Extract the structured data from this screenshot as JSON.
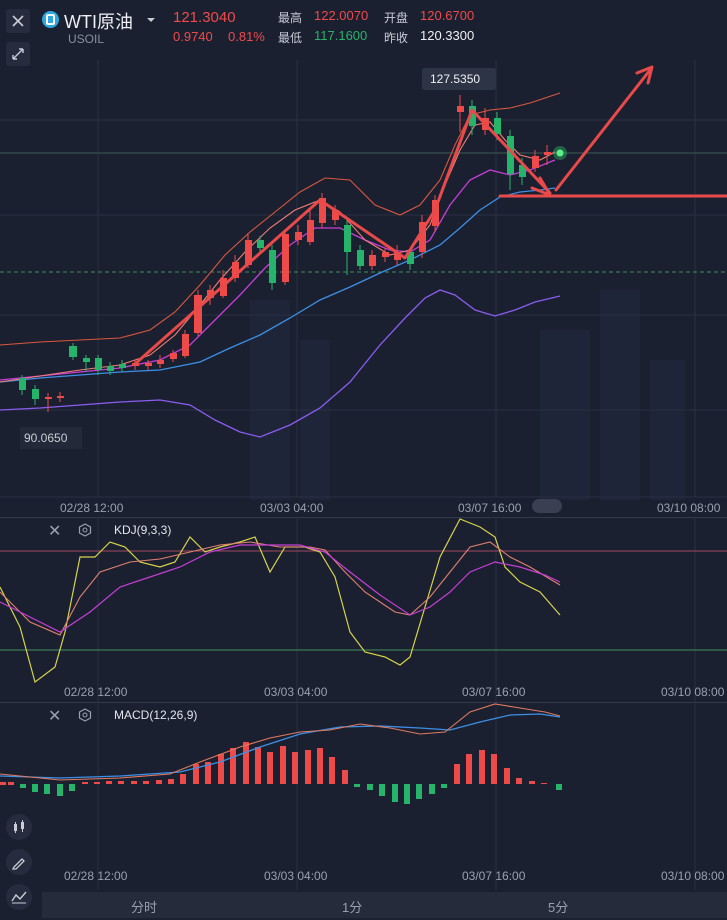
{
  "header": {
    "symbol": "WTI原油",
    "code": "USOIL",
    "price": "121.3040",
    "change": "0.9740",
    "change_pct": "0.81%",
    "high_label": "最高",
    "high": "122.0070",
    "open_label": "开盘",
    "open": "120.6700",
    "low_label": "最低",
    "low": "117.1600",
    "prev_label": "昨收",
    "prev": "120.3300"
  },
  "main_chart": {
    "peak_label": "127.5350",
    "low_label": "90.0650",
    "times": [
      "02/28 12:00",
      "03/03 04:00",
      "03/07 16:00",
      "03/10 08:00"
    ]
  },
  "kdj": {
    "title": "KDJ(9,3,3)"
  },
  "macd": {
    "title": "MACD(12,26,9)"
  },
  "tabs": [
    "分时",
    "1分",
    "5分"
  ],
  "colors": {
    "up": "#ef4a4a",
    "down": "#26b36a",
    "bg": "#1b2030"
  },
  "icons": [
    "close-icon",
    "collapse-icon",
    "dropdown-icon",
    "candlestick-icon",
    "draw-icon",
    "indicator-icon",
    "settings-icon"
  ]
}
